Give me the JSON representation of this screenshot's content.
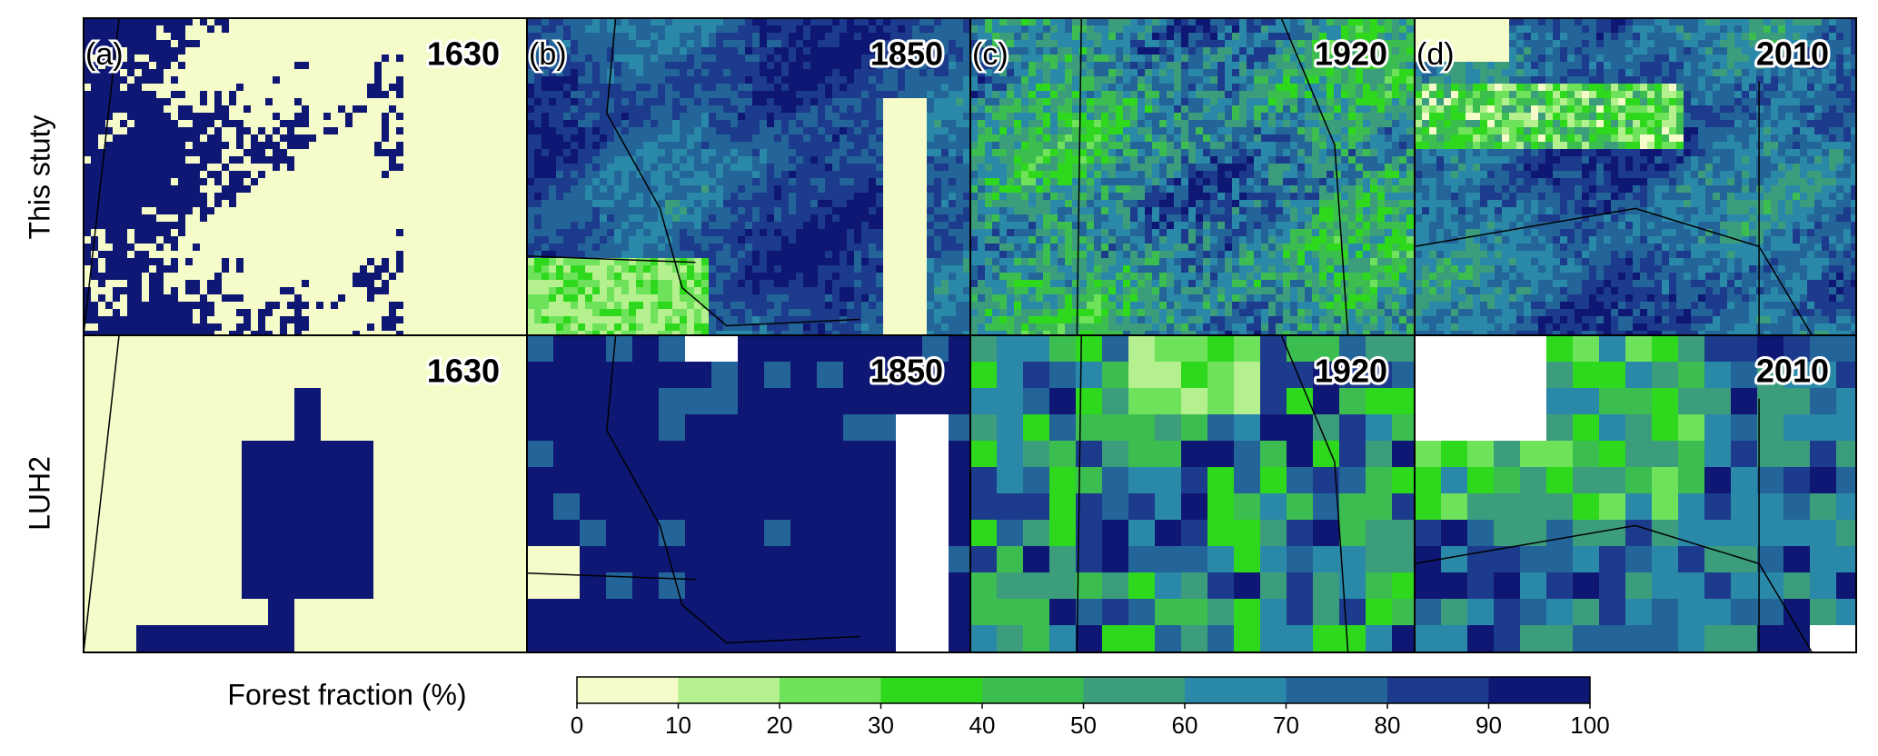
{
  "rows": [
    {
      "label": "This stuty",
      "years": [
        "1630",
        "1850",
        "1920",
        "2010"
      ]
    },
    {
      "label": "LUH2",
      "years": [
        "1630",
        "1850",
        "1920",
        "2010"
      ]
    }
  ],
  "panel_letters": [
    "(a)",
    "(b)",
    "(c)",
    "(d)"
  ],
  "colorbar": {
    "title": "Forest  fraction (%)",
    "ticks": [
      0,
      10,
      20,
      30,
      40,
      50,
      60,
      70,
      80,
      90,
      100
    ],
    "colors": [
      "#f5fcc9",
      "#b4f08d",
      "#6ee25a",
      "#2ed81c",
      "#3bbd4f",
      "#3c9d7c",
      "#2a88a8",
      "#236499",
      "#1c3b8d",
      "#0e1773"
    ]
  }
}
